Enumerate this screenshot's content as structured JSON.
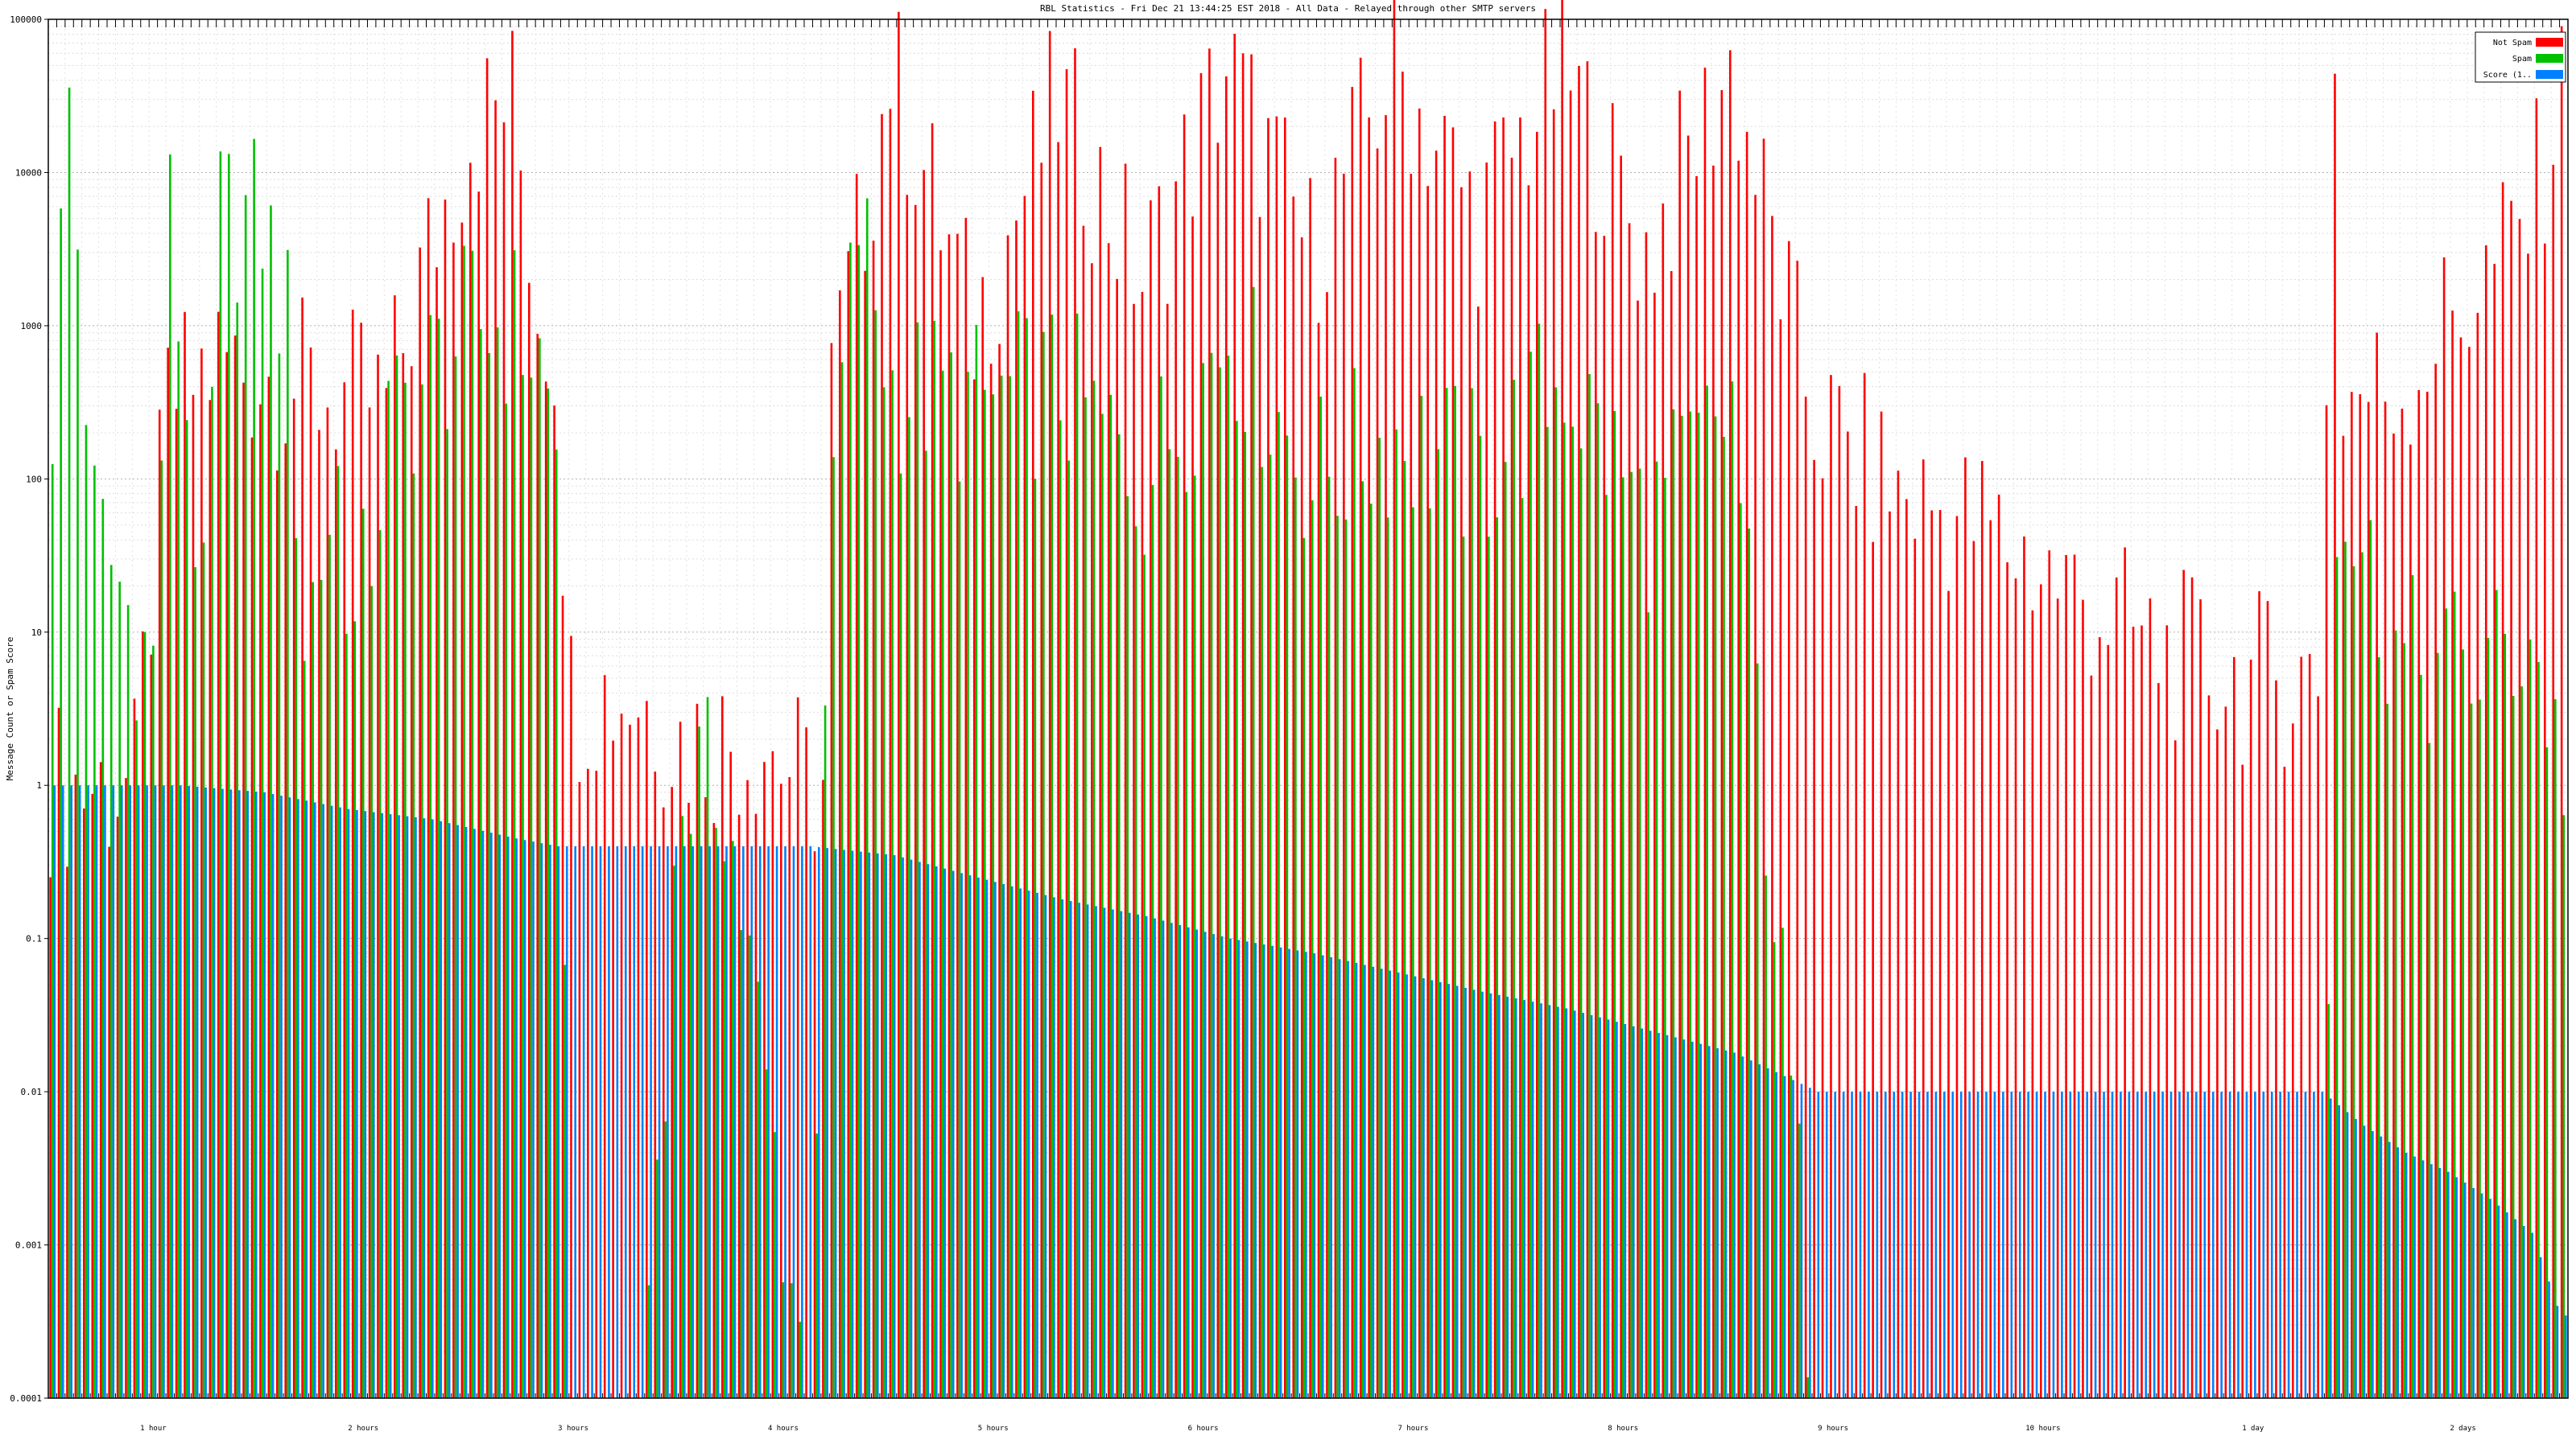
{
  "chart_data": {
    "type": "bar",
    "title": "RBL Statistics - Fri Dec 21 13:44:25 EST 2018 - All Data - Relayed through other SMTP servers",
    "ylabel": "Message Count or Spam Score",
    "xlabel": "",
    "y_scale": "log",
    "ylim": [
      0.0001,
      100000
    ],
    "y_ticks": [
      "0.0001",
      "0.001",
      "0.01",
      "0.1",
      "1",
      "10",
      "100",
      "1000",
      "10000",
      "100000"
    ],
    "grid": true,
    "legend_position": "top-right",
    "legend": [
      {
        "name": "Not Spam",
        "color": "#ff0000"
      },
      {
        "name": "Spam",
        "color": "#00c000"
      },
      {
        "name": "Score (1..",
        "color": "#0080ff"
      }
    ],
    "category_count": 300,
    "category_labels_visible": [
      "1 hour",
      "2 hours",
      "3 hours",
      "4 hours",
      "5 hours",
      "6 hours",
      "7 hours",
      "8 hours",
      "9 hours",
      "10 hours",
      "1 day",
      "2 days"
    ],
    "series": [
      {
        "name": "Not Spam",
        "color": "#ff0000",
        "key_points": [
          [
            0,
            1
          ],
          [
            10,
            1
          ],
          [
            14,
            300
          ],
          [
            20,
            600
          ],
          [
            30,
            400
          ],
          [
            40,
            300
          ],
          [
            45,
            3000
          ],
          [
            50,
            20000
          ],
          [
            55,
            30000
          ],
          [
            58,
            1500
          ],
          [
            60,
            750
          ],
          [
            62,
            4
          ],
          [
            70,
            4
          ],
          [
            75,
            2
          ],
          [
            85,
            2
          ],
          [
            90,
            1
          ],
          [
            92,
            1
          ],
          [
            93,
            400
          ],
          [
            96,
            3000
          ],
          [
            100,
            50000
          ],
          [
            110,
            1000
          ],
          [
            120,
            30000
          ],
          [
            130,
            2000
          ],
          [
            140,
            50000
          ],
          [
            150,
            3000
          ],
          [
            160,
            50000
          ],
          [
            170,
            5000
          ],
          [
            180,
            50000
          ],
          [
            190,
            3000
          ],
          [
            200,
            50000
          ],
          [
            210,
            250
          ],
          [
            220,
            80
          ],
          [
            230,
            50
          ],
          [
            240,
            20
          ],
          [
            250,
            8
          ],
          [
            260,
            5
          ],
          [
            270,
            5
          ],
          [
            271,
            600
          ],
          [
            272,
            40000
          ],
          [
            273,
            350
          ],
          [
            280,
            400
          ],
          [
            285,
            1000
          ],
          [
            290,
            2000
          ],
          [
            295,
            5000
          ],
          [
            300,
            50000
          ]
        ]
      },
      {
        "name": "Spam",
        "color": "#00c000",
        "key_points": [
          [
            0,
            300
          ],
          [
            2,
            30000
          ],
          [
            5,
            50
          ],
          [
            8,
            20
          ],
          [
            10,
            10
          ],
          [
            12,
            6
          ],
          [
            14,
            5000
          ],
          [
            16,
            300
          ],
          [
            18,
            10
          ],
          [
            20,
            5000
          ],
          [
            25,
            5000
          ],
          [
            28,
            1000
          ],
          [
            30,
            10
          ],
          [
            34,
            100
          ],
          [
            36,
            8
          ],
          [
            40,
            200
          ],
          [
            45,
            500
          ],
          [
            50,
            1000
          ],
          [
            55,
            1000
          ],
          [
            58,
            600
          ],
          [
            60,
            150
          ],
          [
            62,
            0.0001
          ],
          [
            70,
            0.0001
          ],
          [
            75,
            1
          ],
          [
            80,
            1
          ],
          [
            90,
            0.0001
          ],
          [
            93,
            100
          ],
          [
            96,
            5000
          ],
          [
            100,
            400
          ],
          [
            110,
            300
          ],
          [
            120,
            400
          ],
          [
            130,
            100
          ],
          [
            140,
            1000
          ],
          [
            150,
            100
          ],
          [
            160,
            200
          ],
          [
            170,
            100
          ],
          [
            180,
            500
          ],
          [
            190,
            50
          ],
          [
            200,
            300
          ],
          [
            210,
            0.0001
          ],
          [
            270,
            0.0001
          ],
          [
            272,
            100
          ],
          [
            280,
            6
          ],
          [
            290,
            6
          ],
          [
            295,
            10
          ],
          [
            298,
            2
          ],
          [
            300,
            1
          ]
        ]
      },
      {
        "name": "Score (1..",
        "color": "#0080ff",
        "key_points": [
          [
            0,
            1
          ],
          [
            15,
            1
          ],
          [
            25,
            0.9
          ],
          [
            35,
            0.7
          ],
          [
            45,
            0.6
          ],
          [
            55,
            0.45
          ],
          [
            60,
            0.4
          ],
          [
            90,
            0.4
          ],
          [
            100,
            0.35
          ],
          [
            110,
            0.25
          ],
          [
            120,
            0.18
          ],
          [
            130,
            0.14
          ],
          [
            140,
            0.1
          ],
          [
            150,
            0.08
          ],
          [
            160,
            0.06
          ],
          [
            170,
            0.045
          ],
          [
            180,
            0.035
          ],
          [
            190,
            0.025
          ],
          [
            200,
            0.018
          ],
          [
            210,
            0.01
          ],
          [
            270,
            0.01
          ],
          [
            275,
            0.006
          ],
          [
            280,
            0.004
          ],
          [
            285,
            0.003
          ],
          [
            290,
            0.002
          ],
          [
            295,
            0.0012
          ],
          [
            298,
            0.0004
          ],
          [
            300,
            0.0003
          ]
        ]
      }
    ]
  }
}
